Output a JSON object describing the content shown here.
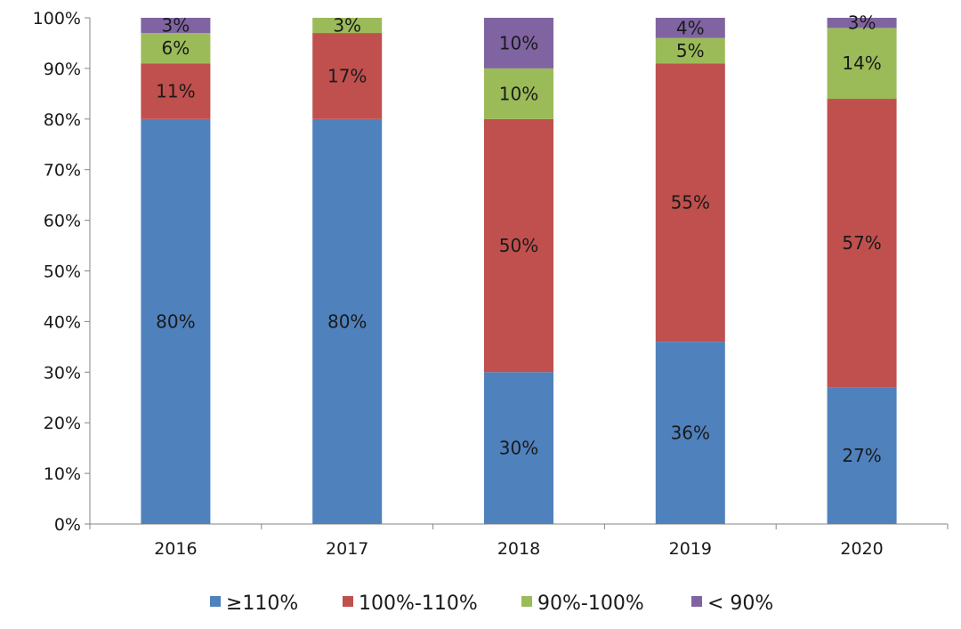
{
  "chart_data": {
    "type": "bar",
    "stacked": true,
    "categories": [
      "2016",
      "2017",
      "2018",
      "2019",
      "2020"
    ],
    "series": [
      {
        "name": "≥110%",
        "color": "#4f81bd",
        "values": [
          80,
          80,
          30,
          36,
          27
        ]
      },
      {
        "name": "100%-110%",
        "color": "#c0504d",
        "values": [
          11,
          17,
          50,
          55,
          57
        ]
      },
      {
        "name": "90%-100%",
        "color": "#9bbb59",
        "values": [
          6,
          3,
          10,
          5,
          14
        ]
      },
      {
        "name": "< 90%",
        "color": "#8064a2",
        "values": [
          3,
          0,
          10,
          4,
          3
        ]
      }
    ],
    "ylim": [
      0,
      100
    ],
    "yticks": [
      "0%",
      "10%",
      "20%",
      "30%",
      "40%",
      "50%",
      "60%",
      "70%",
      "80%",
      "90%",
      "100%"
    ],
    "data_labels": true,
    "legend": "bottom",
    "grid": false,
    "title": "",
    "xlabel": "",
    "ylabel": ""
  }
}
